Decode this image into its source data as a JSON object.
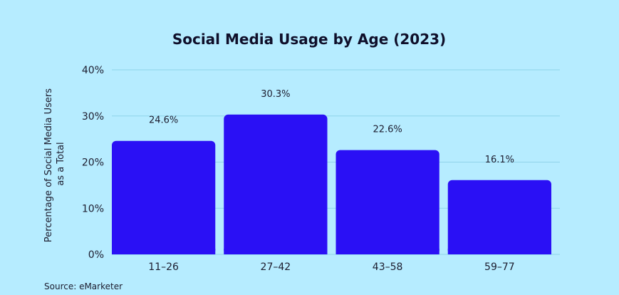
{
  "chart_data": {
    "type": "bar",
    "title": "Social Media Usage by Age (2023)",
    "xlabel": "",
    "ylabel": "Percentage of Social Media Users as a Total",
    "ylabel_lines": [
      "Percentage of Social Media Users",
      "as a Total"
    ],
    "categories": [
      "11–26",
      "27–42",
      "43–58",
      "59–77"
    ],
    "values": [
      24.6,
      30.3,
      22.6,
      16.1
    ],
    "data_labels": [
      "24.6%",
      "30.3%",
      "22.6%",
      "16.1%"
    ],
    "ylim": [
      0,
      40
    ],
    "yticks": [
      0,
      10,
      20,
      30,
      40
    ],
    "ytick_labels": [
      "0%",
      "10%",
      "20%",
      "30%",
      "40%"
    ],
    "grid": true,
    "legend": "none",
    "bar_color": "#2a10f5",
    "background_color": "#b6ecff",
    "source": "Source: eMarketer"
  }
}
